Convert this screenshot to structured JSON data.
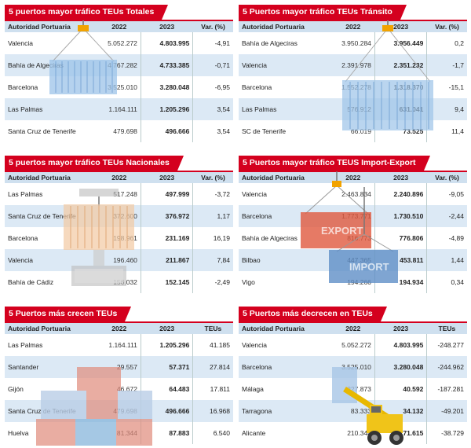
{
  "header": {
    "col_port": "Autoridad Portuaria",
    "col_2022": "2022",
    "col_2023": "2023",
    "col_var": "Var. (%)",
    "col_teus": "TEUs"
  },
  "panels": [
    {
      "title": "5 puertos mayor tráfico TEUs Totales",
      "rows": [
        {
          "port": "Valencia",
          "y2022": "5.052.272",
          "y2023": "4.803.995",
          "var": "-4,91"
        },
        {
          "port": "Bahía de Algeciras",
          "y2022": "4.767.282",
          "y2023": "4.733.385",
          "var": "-0,71"
        },
        {
          "port": "Barcelona",
          "y2022": "3.525.010",
          "y2023": "3.280.048",
          "var": "-6,95"
        },
        {
          "port": "Las Palmas",
          "y2022": "1.164.111",
          "y2023": "1.205.296",
          "var": "3,54"
        },
        {
          "port": "Santa Cruz de Tenerife",
          "y2022": "479.698",
          "y2023": "496.666",
          "var": "3,54"
        }
      ]
    },
    {
      "title": "5 Puertos mayor tráfico TEUs Tránsito",
      "rows": [
        {
          "port": "Bahía de Algeciras",
          "y2022": "3.950.284",
          "y2023": "3.956.449",
          "var": "0,2"
        },
        {
          "port": "Valencia",
          "y2022": "2.391.978",
          "y2023": "2.351.232",
          "var": "-1,7"
        },
        {
          "port": "Barcelona",
          "y2022": "1.552.278",
          "y2023": "1.318.370",
          "var": "-15,1"
        },
        {
          "port": "Las Palmas",
          "y2022": "576.912",
          "y2023": "631.041",
          "var": "9,4"
        },
        {
          "port": "SC de Tenerife",
          "y2022": "66.019",
          "y2023": "73.525",
          "var": "11,4"
        }
      ]
    },
    {
      "title": "5 puertos mayor tráfico TEUs Nacionales",
      "rows": [
        {
          "port": "Las Palmas",
          "y2022": "517.248",
          "y2023": "497.999",
          "var": "-3,72"
        },
        {
          "port": "Santa Cruz de Tenerife",
          "y2022": "372.600",
          "y2023": "376.972",
          "var": "1,17"
        },
        {
          "port": "Barcelona",
          "y2022": "198.961",
          "y2023": "231.169",
          "var": "16,19"
        },
        {
          "port": "Valencia",
          "y2022": "196.460",
          "y2023": "211.867",
          "var": "7,84"
        },
        {
          "port": "Bahía de Cádiz",
          "y2022": "156.032",
          "y2023": "152.145",
          "var": "-2,49"
        }
      ]
    },
    {
      "title": "5 Puertos mayor tráfico TEUS Import-Export",
      "rows": [
        {
          "port": "Valencia",
          "y2022": "2.463.834",
          "y2023": "2.240.896",
          "var": "-9,05"
        },
        {
          "port": "Barcelona",
          "y2022": "1.773.771",
          "y2023": "1.730.510",
          "var": "-2,44"
        },
        {
          "port": "Bahía de Algeciras",
          "y2022": "816.773",
          "y2023": "776.806",
          "var": "-4,89"
        },
        {
          "port": "Bilbao",
          "y2022": "447.365",
          "y2023": "453.811",
          "var": "1,44"
        },
        {
          "port": "Vigo",
          "y2022": "194.266",
          "y2023": "194.934",
          "var": "0,34"
        }
      ]
    },
    {
      "title": "5 Puertos más crecen TEUs",
      "rows": [
        {
          "port": "Las Palmas",
          "y2022": "1.164.111",
          "y2023": "1.205.296",
          "var": "41.185"
        },
        {
          "port": "Santander",
          "y2022": "29.557",
          "y2023": "57.371",
          "var": "27.814"
        },
        {
          "port": "Gijón",
          "y2022": "46.672",
          "y2023": "64.483",
          "var": "17.811"
        },
        {
          "port": "Santa Cruz de Tenerife",
          "y2022": "479.698",
          "y2023": "496.666",
          "var": "16.968"
        },
        {
          "port": "Huelva",
          "y2022": "81.344",
          "y2023": "87.883",
          "var": "6.540"
        }
      ]
    },
    {
      "title": "5 Puertos más decrecen en TEUs",
      "rows": [
        {
          "port": "Valencia",
          "y2022": "5.052.272",
          "y2023": "4.803.995",
          "var": "-248.277"
        },
        {
          "port": "Barcelona",
          "y2022": "3.525.010",
          "y2023": "3.280.048",
          "var": "-244.962"
        },
        {
          "port": "Málaga",
          "y2022": "227.873",
          "y2023": "40.592",
          "var": "-187.281"
        },
        {
          "port": "Tarragona",
          "y2022": "83.333",
          "y2023": "34.132",
          "var": "-49.201"
        },
        {
          "port": "Alicante",
          "y2022": "210.344",
          "y2023": "171.615",
          "var": "-38.729"
        }
      ]
    }
  ],
  "illustrations": {
    "export_label": "EXPORT",
    "import_label": "IMPORT"
  },
  "colors": {
    "accent": "#d4001e",
    "header_bg": "#cfe0ef",
    "row_alt": "#d6e5f3"
  }
}
